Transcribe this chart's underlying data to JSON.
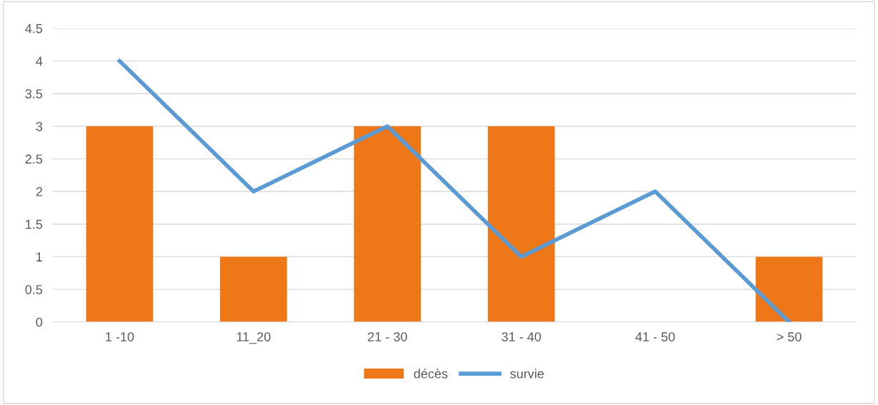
{
  "chart_data": {
    "type": "bar",
    "categories": [
      "1 -10",
      "11_20",
      "21 - 30",
      "31 - 40",
      "41 - 50",
      "> 50"
    ],
    "series": [
      {
        "name": "décès",
        "color": "#ee7718",
        "values": [
          3,
          1,
          3,
          3,
          0,
          1
        ]
      },
      {
        "name": "survie",
        "type": "line",
        "color": "#5b9bd5",
        "values": [
          4,
          2,
          3,
          1,
          2,
          0
        ]
      }
    ],
    "ylim": [
      0,
      4.5
    ],
    "yticks": [
      0,
      0.5,
      1,
      1.5,
      2,
      2.5,
      3,
      3.5,
      4,
      4.5
    ],
    "grid": "y",
    "legend": "bottom",
    "marker": "none",
    "line_style": "solid"
  }
}
